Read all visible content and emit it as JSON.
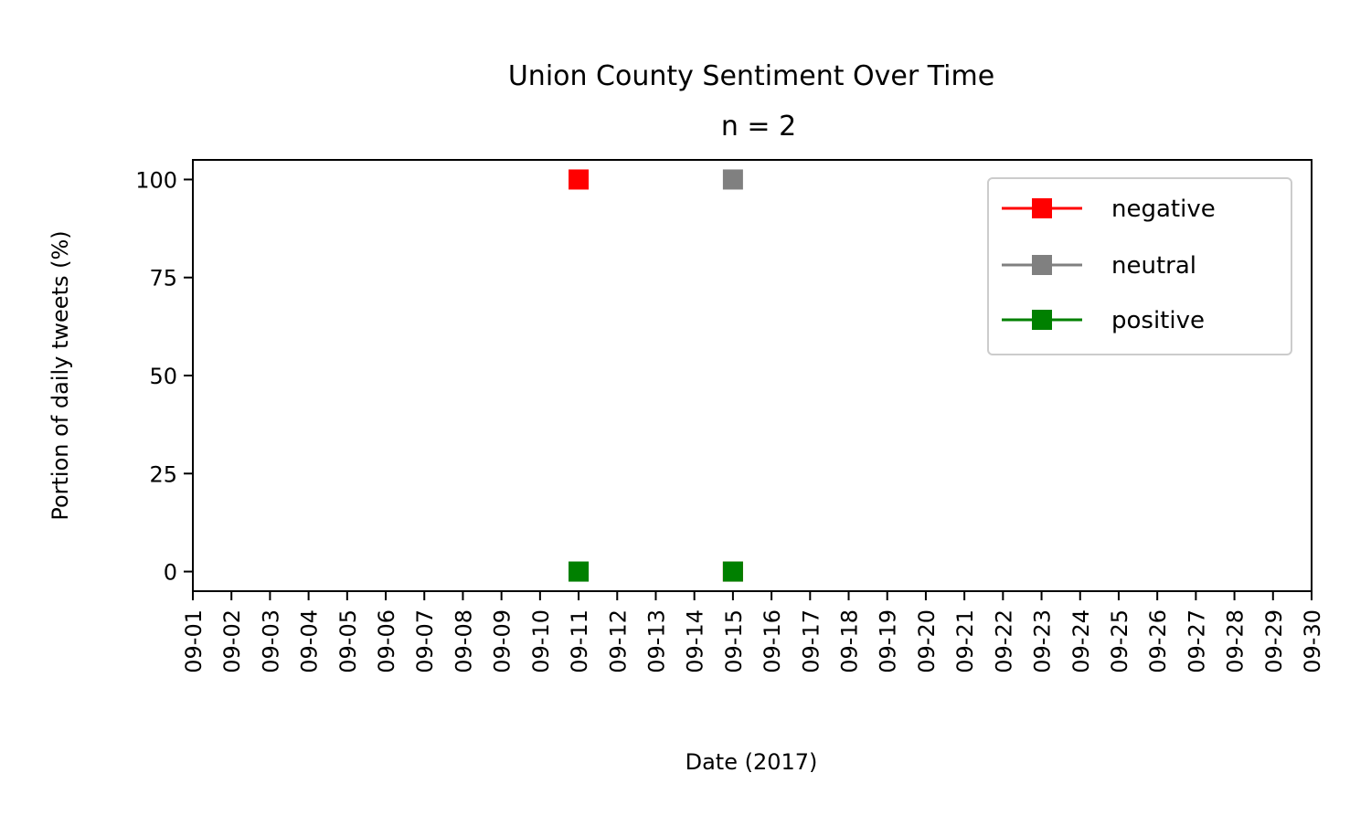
{
  "chart_data": {
    "type": "line",
    "title": "Union County Sentiment Over Time",
    "subtitle": "n = 2",
    "xlabel": "Date (2017)",
    "ylabel": "Portion of daily tweets (%)",
    "x_categories": [
      "09-01",
      "09-02",
      "09-03",
      "09-04",
      "09-05",
      "09-06",
      "09-07",
      "09-08",
      "09-09",
      "09-10",
      "09-11",
      "09-12",
      "09-13",
      "09-14",
      "09-15",
      "09-16",
      "09-17",
      "09-18",
      "09-19",
      "09-20",
      "09-21",
      "09-22",
      "09-23",
      "09-24",
      "09-25",
      "09-26",
      "09-27",
      "09-28",
      "09-29",
      "09-30"
    ],
    "ylim": [
      -5,
      105
    ],
    "yticks": [
      0,
      25,
      50,
      75,
      100
    ],
    "grid": false,
    "legend_position": "top-right",
    "series": [
      {
        "name": "negative",
        "color": "#ff0000",
        "marker": "square",
        "points": [
          {
            "x": "09-11",
            "y": 100
          },
          {
            "x": "09-15",
            "y": 0
          }
        ]
      },
      {
        "name": "neutral",
        "color": "#808080",
        "marker": "square",
        "points": [
          {
            "x": "09-11",
            "y": 0
          },
          {
            "x": "09-15",
            "y": 100
          }
        ]
      },
      {
        "name": "positive",
        "color": "#008000",
        "marker": "square",
        "points": [
          {
            "x": "09-11",
            "y": 0
          },
          {
            "x": "09-15",
            "y": 0
          }
        ]
      }
    ]
  }
}
